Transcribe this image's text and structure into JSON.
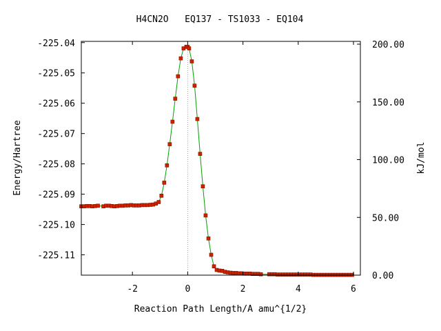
{
  "chart_data": {
    "type": "scatter",
    "title": "H4CN2O   EQ137 - TS1033 - EQ104",
    "xlabel": "Reaction Path Length/A amu^{1/2}",
    "ylabel": "Energy/Hartree",
    "y2label": "kJ/mol",
    "xlim": [
      -3.85,
      6.25
    ],
    "ylim": [
      -225.1167,
      -225.0396
    ],
    "y2lim": [
      -0.0,
      202.4
    ],
    "x_ticks": [
      {
        "value": -2,
        "label": "-2"
      },
      {
        "value": 0,
        "label": "0"
      },
      {
        "value": 2,
        "label": "2"
      },
      {
        "value": 4,
        "label": "4"
      },
      {
        "value": 6,
        "label": "6"
      }
    ],
    "y_ticks": [
      {
        "value": -225.04,
        "label": "-225.04"
      },
      {
        "value": -225.05,
        "label": "-225.05"
      },
      {
        "value": -225.06,
        "label": "-225.06"
      },
      {
        "value": -225.07,
        "label": "-225.07"
      },
      {
        "value": -225.08,
        "label": "-225.08"
      },
      {
        "value": -225.09,
        "label": "-225.09"
      },
      {
        "value": -225.1,
        "label": "-225.10"
      },
      {
        "value": -225.11,
        "label": "-225.11"
      }
    ],
    "y2_ticks": [
      {
        "value": 200,
        "label": "200.00"
      },
      {
        "value": 150,
        "label": "150.00"
      },
      {
        "value": 100,
        "label": "100.00"
      },
      {
        "value": 50,
        "label": "50.00"
      },
      {
        "value": 0,
        "label": "0.00"
      }
    ],
    "ts_x": 0.0,
    "curve_color": "#00a000",
    "point_color": "#cc2200",
    "point_edge_color": "#7a1400",
    "ts_line_color": "#999999",
    "grid": false,
    "series": [
      {
        "x": [
          -3.85,
          -3.75,
          -3.65,
          -3.55,
          -3.45,
          -3.35,
          -3.25,
          -3.05,
          -2.95,
          -2.85,
          -2.75,
          -2.65,
          -2.55,
          -2.45,
          -2.35,
          -2.25,
          -2.15,
          -2.05,
          -1.95,
          -1.85,
          -1.75,
          -1.65,
          -1.55,
          -1.45,
          -1.35,
          -1.25,
          -1.15,
          -1.05,
          -0.95,
          -0.85,
          -0.75,
          -0.65,
          -0.55,
          -0.45,
          -0.35,
          -0.25,
          -0.15,
          -0.05,
          0.0,
          0.05,
          0.15,
          0.25,
          0.35,
          0.45,
          0.55,
          0.65,
          0.75,
          0.85,
          0.95,
          1.05,
          1.15,
          1.25,
          1.35,
          1.45,
          1.55,
          1.65,
          1.75,
          1.85,
          1.95,
          2.05,
          2.15,
          2.25,
          2.35,
          2.45,
          2.55,
          2.65,
          2.95,
          3.05,
          3.15,
          3.25,
          3.35,
          3.45,
          3.55,
          3.65,
          3.75,
          3.85,
          3.95,
          4.05,
          4.15,
          4.25,
          4.35,
          4.45,
          4.55,
          4.65,
          4.75,
          4.85,
          4.95,
          5.05,
          5.15,
          5.25,
          5.35,
          5.45,
          5.55,
          5.65,
          5.75,
          5.85,
          5.95
        ],
        "y": [
          -225.094,
          -225.094,
          -225.0939,
          -225.0939,
          -225.094,
          -225.0939,
          -225.0938,
          -225.094,
          -225.0938,
          -225.0938,
          -225.0939,
          -225.094,
          -225.0939,
          -225.0938,
          -225.0938,
          -225.0937,
          -225.0937,
          -225.0936,
          -225.0937,
          -225.0937,
          -225.0937,
          -225.0936,
          -225.0936,
          -225.0936,
          -225.0935,
          -225.0934,
          -225.0931,
          -225.0926,
          -225.0905,
          -225.0862,
          -225.0805,
          -225.0735,
          -225.0661,
          -225.0585,
          -225.0511,
          -225.0452,
          -225.0419,
          -225.0414,
          -225.0414,
          -225.0419,
          -225.0462,
          -225.0542,
          -225.0652,
          -225.0767,
          -225.0874,
          -225.097,
          -225.1046,
          -225.11,
          -225.1138,
          -225.115,
          -225.1152,
          -225.1153,
          -225.1156,
          -225.1158,
          -225.1159,
          -225.116,
          -225.116,
          -225.1161,
          -225.1161,
          -225.1162,
          -225.1162,
          -225.1162,
          -225.1163,
          -225.1163,
          -225.1163,
          -225.1164,
          -225.1164,
          -225.1164,
          -225.1164,
          -225.1165,
          -225.1165,
          -225.1165,
          -225.1165,
          -225.1165,
          -225.1165,
          -225.1165,
          -225.1165,
          -225.1165,
          -225.1165,
          -225.1165,
          -225.1165,
          -225.1165,
          -225.1166,
          -225.1166,
          -225.1166,
          -225.1166,
          -225.1166,
          -225.1166,
          -225.1166,
          -225.1166,
          -225.1166,
          -225.1166,
          -225.1166,
          -225.1166,
          -225.1166,
          -225.1166,
          -225.1166
        ]
      }
    ]
  }
}
